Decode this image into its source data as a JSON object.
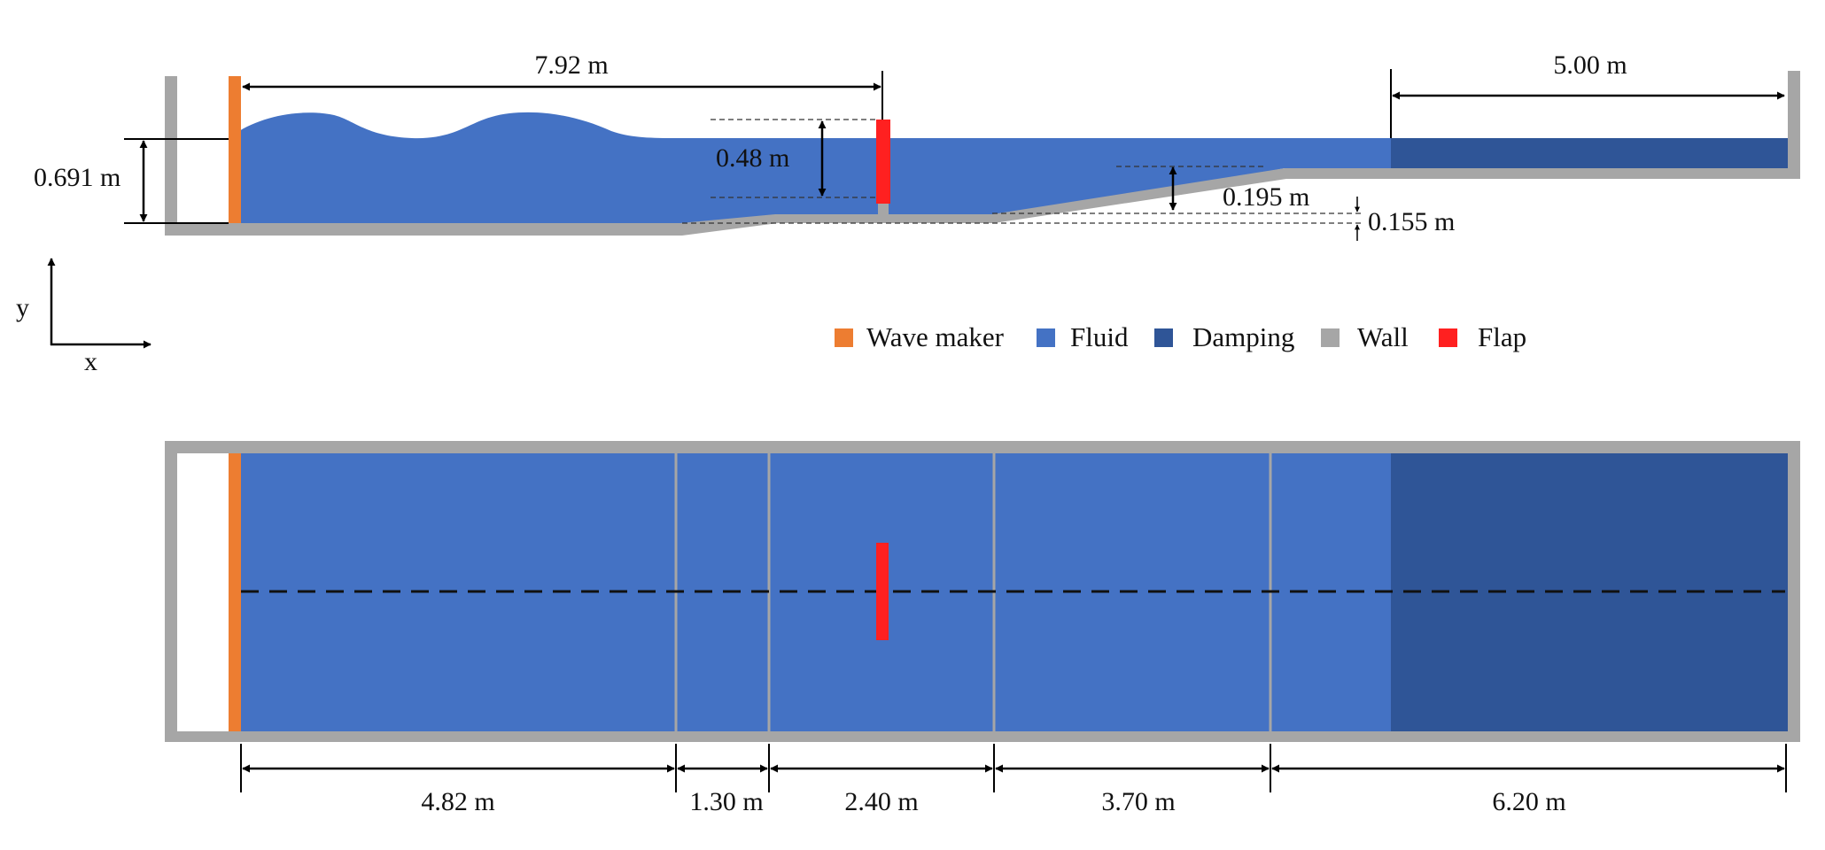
{
  "colors": {
    "wave_maker": "#ED7D31",
    "fluid": "#4472C4",
    "damping": "#2F5597",
    "wall": "#A6A6A6",
    "flap": "#FF2020",
    "line": "#000000"
  },
  "side_view": {
    "dims": {
      "flap_distance": "7.92 m",
      "damping_length": "5.00 m",
      "water_depth": "0.691 m",
      "flap_height": "0.48 m",
      "step_height": "0.195 m",
      "raise_height": "0.155 m"
    }
  },
  "axes": {
    "y_label": "y",
    "x_label": "x"
  },
  "legend": [
    {
      "key": "wave_maker",
      "label": "Wave maker",
      "icon": "orange-square"
    },
    {
      "key": "fluid",
      "label": "Fluid",
      "icon": "blue-square"
    },
    {
      "key": "damping",
      "label": "Damping",
      "icon": "navy-square"
    },
    {
      "key": "wall",
      "label": "Wall",
      "icon": "gray-square"
    },
    {
      "key": "flap",
      "label": "Flap",
      "icon": "red-square"
    }
  ],
  "top_view": {
    "segments": [
      "4.82 m",
      "1.30 m",
      "2.40 m",
      "3.70 m",
      "6.20 m"
    ]
  }
}
